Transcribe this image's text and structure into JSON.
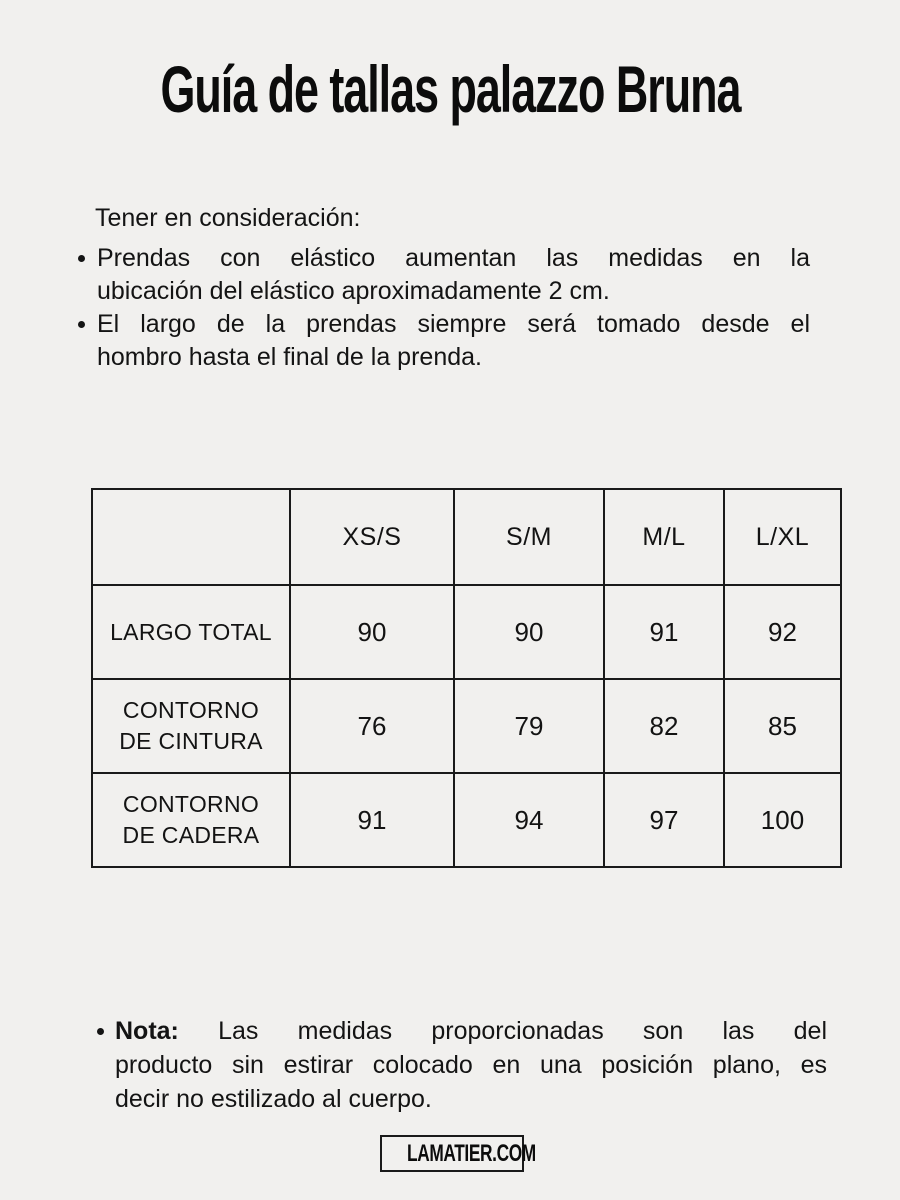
{
  "page": {
    "title": "Guía de tallas palazzo Bruna",
    "background_color": "#f1f0ee",
    "text_color": "#131313",
    "border_color": "#1a1a1a"
  },
  "considerations": {
    "heading": "Tener en consideración:",
    "bullets": [
      {
        "lines": [
          "Prendas con elástico aumentan las medidas en la",
          "ubicación del elástico aproximadamente 2 cm."
        ]
      },
      {
        "lines": [
          "El largo de la prendas siempre será tomado desde el",
          "hombro hasta el final de la prenda."
        ]
      }
    ]
  },
  "size_table": {
    "columns": [
      "",
      "XS/S",
      "S/M",
      "M/L",
      "L/XL"
    ],
    "rows": [
      {
        "label": "LARGO TOTAL",
        "values": [
          "90",
          "90",
          "91",
          "92"
        ]
      },
      {
        "label": "CONTORNO DE CINTURA",
        "values": [
          "76",
          "79",
          "82",
          "85"
        ]
      },
      {
        "label": "CONTORNO DE CADERA",
        "values": [
          "91",
          "94",
          "97",
          "100"
        ]
      }
    ]
  },
  "note": {
    "bold_prefix": "Nota:",
    "line1_rest": "Las medidas proporcionadas son las del",
    "line2": "producto sin estirar colocado en una posición plano, es",
    "line3": "decir no estilizado al cuerpo."
  },
  "footer": {
    "brand": "LAMATIER.COM"
  }
}
